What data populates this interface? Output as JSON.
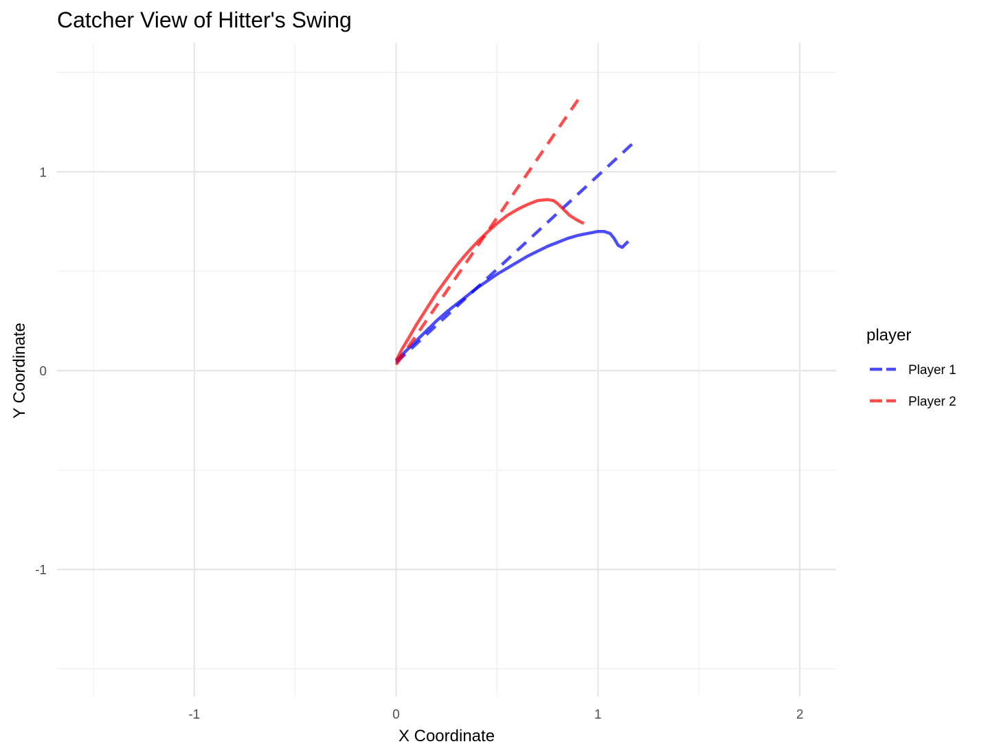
{
  "chart_data": {
    "type": "line",
    "title": "Catcher View of Hitter's Swing",
    "xlabel": "X Coordinate",
    "ylabel": "Y Coordinate",
    "xlim": [
      -1.68,
      2.18
    ],
    "ylim": [
      -1.64,
      1.65
    ],
    "x_ticks": [
      -1,
      0,
      1,
      2
    ],
    "x_tick_labels": [
      "-1",
      "0",
      "1",
      "2"
    ],
    "y_ticks": [
      -1,
      0,
      1
    ],
    "y_tick_labels": [
      "-1",
      "0",
      "1"
    ],
    "x_minor": [
      -1.5,
      -0.5,
      0.5,
      1.5
    ],
    "y_minor": [
      -1.5,
      -0.5,
      0.5,
      1.5
    ],
    "grid": true,
    "legend": {
      "title": "player",
      "position": "right",
      "entries": [
        {
          "label": "Player 1",
          "color": "#0000ff"
        },
        {
          "label": "Player 2",
          "color": "#ff0000"
        }
      ]
    },
    "series": [
      {
        "name": "Player 1",
        "color": "#0000ff",
        "path": {
          "x": [
            0.0,
            0.05,
            0.1,
            0.15,
            0.2,
            0.25,
            0.3,
            0.35,
            0.4,
            0.45,
            0.5,
            0.55,
            0.6,
            0.65,
            0.7,
            0.75,
            0.8,
            0.85,
            0.9,
            0.95,
            1.0,
            1.03,
            1.06,
            1.08,
            1.1,
            1.12,
            1.13,
            1.145,
            1.15
          ],
          "y": [
            0.05,
            0.1,
            0.15,
            0.2,
            0.25,
            0.295,
            0.335,
            0.375,
            0.415,
            0.45,
            0.485,
            0.515,
            0.545,
            0.575,
            0.6,
            0.625,
            0.645,
            0.665,
            0.68,
            0.69,
            0.7,
            0.7,
            0.69,
            0.665,
            0.63,
            0.62,
            0.63,
            0.645,
            0.65
          ]
        },
        "trend": {
          "x": [
            0.0,
            1.18
          ],
          "y": [
            0.04,
            1.15
          ]
        }
      },
      {
        "name": "Player 2",
        "color": "#ff0000",
        "path": {
          "x": [
            0.0,
            0.03,
            0.06,
            0.1,
            0.15,
            0.2,
            0.25,
            0.3,
            0.35,
            0.4,
            0.45,
            0.5,
            0.55,
            0.6,
            0.65,
            0.7,
            0.75,
            0.78,
            0.8,
            0.83,
            0.86,
            0.9,
            0.93
          ],
          "y": [
            0.05,
            0.11,
            0.16,
            0.23,
            0.31,
            0.39,
            0.46,
            0.53,
            0.59,
            0.645,
            0.695,
            0.74,
            0.78,
            0.81,
            0.835,
            0.855,
            0.86,
            0.855,
            0.84,
            0.81,
            0.78,
            0.755,
            0.74
          ]
        },
        "trend": {
          "x": [
            0.0,
            0.92
          ],
          "y": [
            0.03,
            1.39
          ]
        }
      }
    ]
  }
}
